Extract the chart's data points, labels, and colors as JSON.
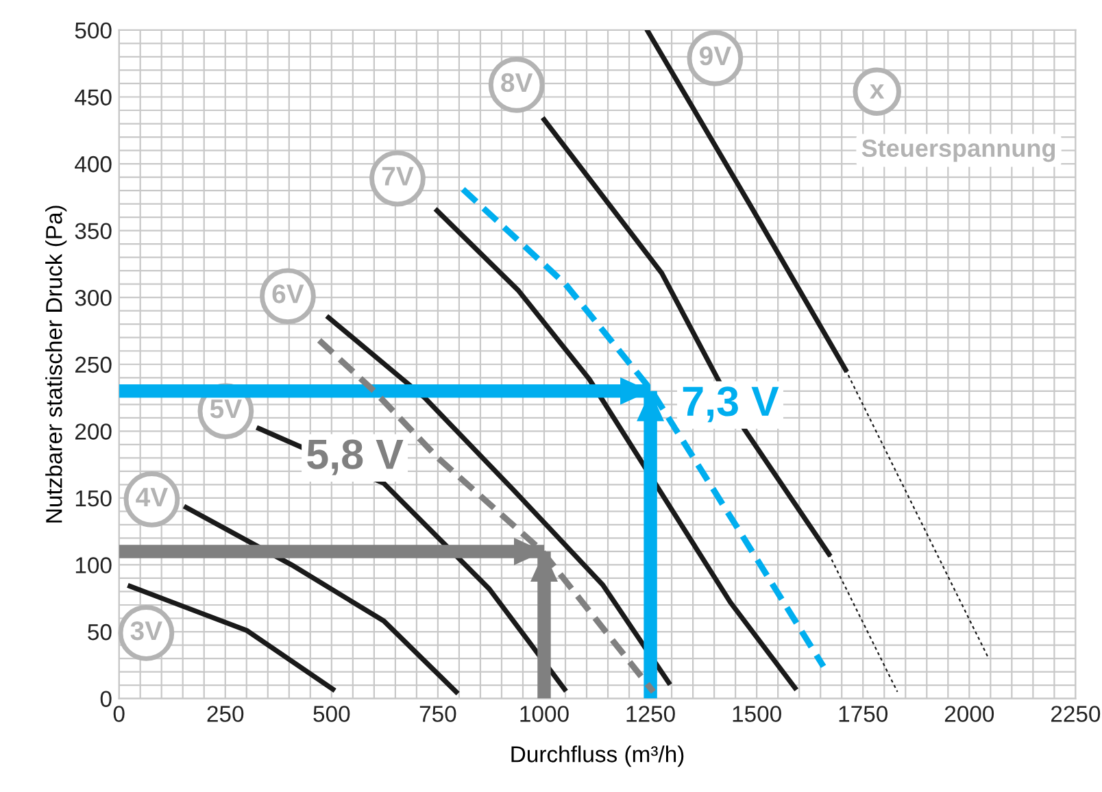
{
  "chart_data": {
    "type": "line",
    "xlabel": "Durchfluss (m³/h)",
    "ylabel": "Nutzbarer statischer Druck (Pa)",
    "legend_title": "Steuerspannung",
    "xlim": [
      0,
      2250
    ],
    "ylim": [
      0,
      500
    ],
    "xticks": [
      0,
      250,
      500,
      750,
      1000,
      1250,
      1500,
      1750,
      2000,
      2250
    ],
    "yticks": [
      0,
      50,
      100,
      150,
      200,
      250,
      300,
      350,
      400,
      450,
      500
    ],
    "grid": true,
    "series": [
      {
        "color": "#1a1a1a",
        "line_style": "solid",
        "x": [
          26,
          300,
          503
        ],
        "values": [
          84,
          51,
          7
        ]
      },
      {
        "color": "#1a1a1a",
        "line_style": "solid",
        "x": [
          158,
          406,
          623,
          793
        ],
        "values": [
          143,
          100,
          58,
          5
        ]
      },
      {
        "color": "#1a1a1a",
        "line_style": "solid",
        "x": [
          329,
          623,
          871,
          1048
        ],
        "values": [
          202,
          161,
          82,
          7
        ]
      },
      {
        "color": "#1a1a1a",
        "line_style": "solid",
        "x": [
          493,
          719,
          928,
          1138,
          1293
        ],
        "values": [
          285,
          225,
          156,
          85,
          12
        ]
      },
      {
        "color": "#1a1a1a",
        "line_style": "solid",
        "x": [
          748,
          940,
          1106,
          1438,
          1590
        ],
        "values": [
          365,
          305,
          239,
          72,
          8
        ]
      },
      {
        "color": "#1a1a1a",
        "line_style": "solid",
        "x": [
          1000,
          1277,
          1470,
          1670
        ],
        "values": [
          433,
          318,
          202,
          108
        ]
      },
      {
        "color": "#1a1a1a",
        "line_style": "dotted",
        "x": [
          1670,
          1831
        ],
        "values": [
          108,
          5
        ]
      },
      {
        "color": "#1a1a1a",
        "line_style": "solid",
        "x": [
          1244,
          1483,
          1709
        ],
        "values": [
          499,
          370,
          246
        ]
      },
      {
        "color": "#1a1a1a",
        "line_style": "dotted",
        "x": [
          1709,
          2044
        ],
        "values": [
          246,
          31
        ]
      },
      {
        "name": "5,8 V",
        "color": "#808080",
        "line_style": "dashed",
        "x": [
          471,
          600,
          750,
          993,
          1257
        ],
        "values": [
          268,
          230,
          180,
          111,
          5
        ]
      },
      {
        "name": "7,3 V",
        "color": "#00aeef",
        "line_style": "dashed",
        "x": [
          809,
          1050,
          1251,
          1460,
          1657
        ],
        "values": [
          381,
          310,
          231,
          125,
          24
        ]
      },
      {
        "color": "#808080",
        "x": [
          0,
          1000
        ],
        "values": [
          110,
          110
        ]
      },
      {
        "color": "#808080",
        "x": [
          1000,
          1000
        ],
        "values": [
          0,
          110
        ]
      },
      {
        "color": "#00aeef",
        "x": [
          0,
          1250
        ],
        "values": [
          230,
          230
        ]
      },
      {
        "color": "#00aeef",
        "x": [
          1250,
          1250
        ],
        "values": [
          0,
          230
        ]
      }
    ],
    "annotations": [
      {
        "text": "3V",
        "x": 64,
        "y": 49
      },
      {
        "text": "4V",
        "x": 77,
        "y": 149
      },
      {
        "text": "5V",
        "x": 251,
        "y": 215
      },
      {
        "text": "6V",
        "x": 397,
        "y": 301
      },
      {
        "text": "7V",
        "x": 655,
        "y": 389
      },
      {
        "text": "8V",
        "x": 935,
        "y": 459
      },
      {
        "text": "9V",
        "x": 1402,
        "y": 479
      },
      {
        "text": "x",
        "x": 1783,
        "y": 454
      }
    ]
  }
}
